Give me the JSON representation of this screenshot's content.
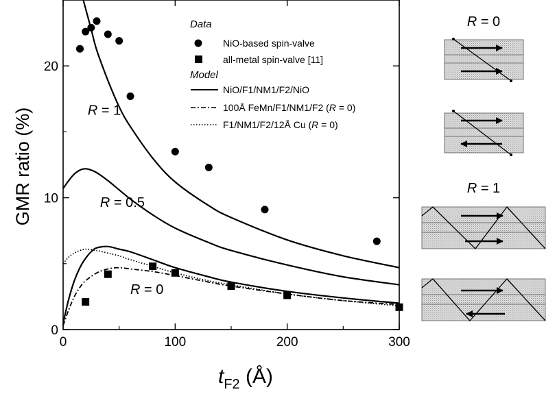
{
  "chart_data": {
    "type": "scatter",
    "xlabel_main": "t",
    "xlabel_sub": "F2",
    "xlabel_unit": " (Å)",
    "ylabel": "GMR ratio (%)",
    "xlim": [
      0,
      300
    ],
    "ylim": [
      0,
      25
    ],
    "xticks": [
      0,
      100,
      200,
      300
    ],
    "yticks": [
      0,
      10,
      20
    ],
    "grid": false,
    "legend_position": "top-right",
    "legend": {
      "data_heading": "Data",
      "model_heading": "Model",
      "entries": [
        {
          "label": "NiO-based spin-valve",
          "marker": "circle"
        },
        {
          "label": "all-metal spin-valve [11]",
          "marker": "square"
        },
        {
          "label": "NiO/F1/NM1/F2/NiO",
          "line": "solid"
        },
        {
          "label": "100Å FeMn/F1/NM1/F2 (R = 0)",
          "line": "dashdot"
        },
        {
          "label": "F1/NM1/F2/12Å Cu (R = 0)",
          "line": "dotted"
        }
      ]
    },
    "series": [
      {
        "name": "NiO-based spin-valve",
        "kind": "points",
        "marker": "circle",
        "x": [
          15,
          20,
          25,
          30,
          40,
          50,
          60,
          100,
          130,
          180,
          280
        ],
        "y": [
          21.3,
          22.6,
          22.9,
          23.4,
          22.4,
          21.9,
          17.7,
          13.5,
          12.3,
          9.1,
          6.7
        ]
      },
      {
        "name": "all-metal spin-valve [11]",
        "kind": "points",
        "marker": "square",
        "x": [
          20,
          40,
          80,
          100,
          150,
          200,
          300
        ],
        "y": [
          2.1,
          4.2,
          4.8,
          4.3,
          3.3,
          2.6,
          1.7
        ]
      },
      {
        "name": "NiO/F1/NM1/F2/NiO (R = 1)",
        "kind": "line",
        "style": "solid",
        "x": [
          18,
          25,
          30,
          40,
          50,
          60,
          80,
          100,
          130,
          150,
          200,
          250,
          300
        ],
        "y": [
          25.0,
          22.8,
          21.2,
          18.9,
          16.9,
          15.4,
          13.0,
          11.2,
          9.4,
          8.5,
          6.8,
          5.6,
          4.7
        ]
      },
      {
        "name": "NiO/F1/NM1/F2/NiO (R = 0.5)",
        "kind": "line",
        "style": "solid",
        "x": [
          0,
          5,
          10,
          15,
          20,
          25,
          30,
          40,
          50,
          60,
          80,
          100,
          130,
          150,
          200,
          250,
          300
        ],
        "y": [
          10.7,
          11.3,
          11.8,
          12.1,
          12.2,
          12.1,
          11.9,
          11.3,
          10.6,
          9.9,
          8.7,
          7.7,
          6.6,
          6.0,
          4.9,
          4.0,
          3.4
        ]
      },
      {
        "name": "NiO/F1/NM1/F2/NiO (R = 0)",
        "kind": "line",
        "style": "solid",
        "x": [
          0,
          5,
          10,
          15,
          20,
          25,
          30,
          40,
          50,
          60,
          80,
          100,
          130,
          150,
          200,
          250,
          300
        ],
        "y": [
          0.5,
          2.3,
          3.7,
          4.7,
          5.4,
          5.9,
          6.2,
          6.3,
          6.1,
          5.9,
          5.3,
          4.7,
          4.0,
          3.6,
          2.9,
          2.4,
          2.0
        ]
      },
      {
        "name": "100Å FeMn/F1/NM1/F2 (R = 0)",
        "kind": "line",
        "style": "dashdot",
        "x": [
          0,
          5,
          10,
          15,
          20,
          30,
          40,
          50,
          60,
          80,
          100,
          130,
          150,
          200,
          250,
          300
        ],
        "y": [
          0.3,
          1.5,
          2.5,
          3.2,
          3.7,
          4.3,
          4.6,
          4.7,
          4.6,
          4.4,
          4.1,
          3.6,
          3.3,
          2.7,
          2.2,
          1.9
        ]
      },
      {
        "name": "F1/NM1/F2/12Å Cu (R = 0)",
        "kind": "line",
        "style": "dotted",
        "x": [
          0,
          5,
          10,
          15,
          20,
          30,
          40,
          50,
          60,
          80,
          100,
          130,
          150,
          200,
          250,
          300
        ],
        "y": [
          5.0,
          5.5,
          5.8,
          6.0,
          6.1,
          6.0,
          5.8,
          5.6,
          5.3,
          4.8,
          4.3,
          3.7,
          3.4,
          2.7,
          2.2,
          1.8
        ]
      }
    ],
    "annotations": [
      {
        "text": "R = 1",
        "x": 22,
        "y": 16.3
      },
      {
        "text": "R = 0.5",
        "x": 33,
        "y": 9.3
      },
      {
        "text": "R = 0",
        "x": 60,
        "y": 2.7
      }
    ]
  },
  "schematics": {
    "r0_label": "R = 0",
    "r1_label": "R = 1",
    "r_symbol": "R",
    "r0_text": " = 0",
    "r1_text": " = 1"
  }
}
